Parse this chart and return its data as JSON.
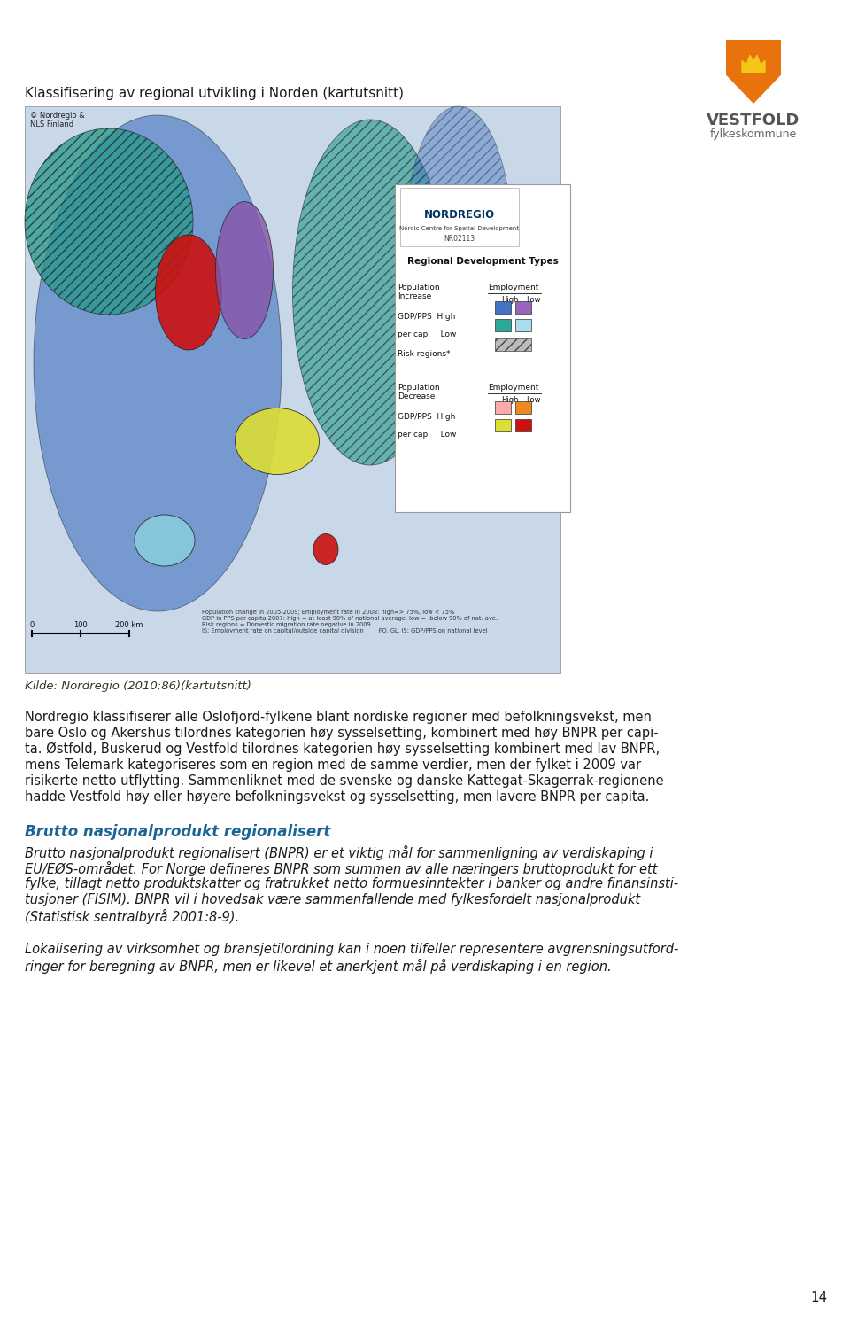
{
  "page_number": "14",
  "background_color": "#ffffff",
  "logo_text_bold": "VESTFOLD",
  "logo_text_light": "fylkeskommune",
  "logo_color_orange": "#e8720c",
  "logo_color_yellow": "#f5c518",
  "title_map": "Klassifisering av regional utvikling i Norden (kartutsnitt)",
  "source_label": "Kilde: Nordregio (2010:86)(kartutsnitt)",
  "para1_lines": [
    "Nordregio klassifiserer alle Oslofjord-fylkene blant nordiske regioner med befolkningsvekst, men",
    "bare Oslo og Akershus tilordnes kategorien høy sysselsetting, kombinert med høy BNPR per capi-",
    "ta. Østfold, Buskerud og Vestfold tilordnes kategorien høy sysselsetting kombinert med lav BNPR,",
    "mens Telemark kategoriseres som en region med de samme verdier, men der fylket i 2009 var",
    "risikerte netto utflytting. Sammenliknet med de svenske og danske Kattegat-Skagerrak-regionene",
    "hadde Vestfold høy eller høyere befolkningsvekst og sysselsetting, men lavere BNPR per capita."
  ],
  "heading2": "Brutto nasjonalprodukt regionalisert",
  "para2_lines": [
    "Brutto nasjonalprodukt regionalisert (BNPR) er et viktig mål for sammenligning av verdiskaping i",
    "EU/EØS-området. For Norge defineres BNPR som summen av alle næringers bruttoprodukt for ett",
    "fylke, tillagt netto produktskatter og fratrukket netto formuesinntekter i banker og andre finansinsti-",
    "tusjoner (FISIM). BNPR vil i hovedsak være sammenfallende med fylkesfordelt nasjonalprodukt",
    "(Statistisk sentralbyrå 2001:8-9)."
  ],
  "para3_lines": [
    "Lokalisering av virksomhet og bransjetilordning kan i noen tilfeller representere avgrensningsutford-",
    "ringer for beregning av BNPR, men er likevel et anerkjent mål på verdiskaping i en region."
  ],
  "text_color": "#1a1a1a",
  "heading_color": "#1a6496",
  "source_color": "#333333",
  "fontsize_title": 11,
  "fontsize_body": 10.5,
  "fontsize_heading": 12,
  "fontsize_source": 9.5
}
